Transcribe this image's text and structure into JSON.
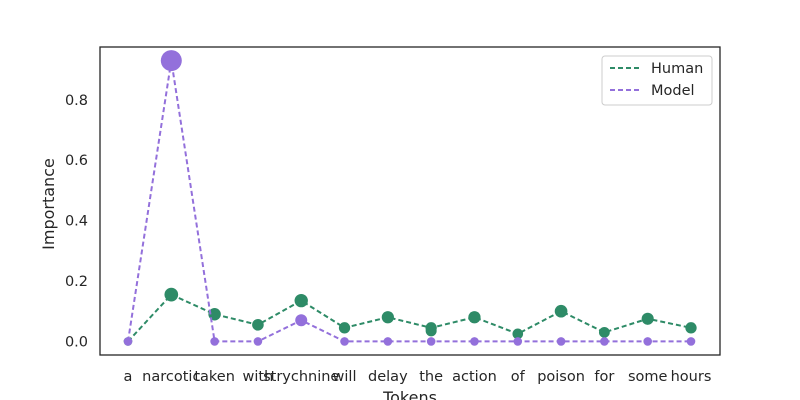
{
  "chart_data": {
    "type": "line",
    "xlabel": "Tokens",
    "ylabel": "Importance",
    "ylim": [
      -0.045,
      0.975
    ],
    "yticks": [
      "0.0",
      "0.2",
      "0.4",
      "0.6",
      "0.8"
    ],
    "grid": false,
    "legend_position": "top-right",
    "categories": [
      "a",
      "narcotic",
      "taken",
      "with",
      "strychnine",
      "will",
      "delay",
      "the",
      "action",
      "of",
      "poison",
      "for",
      "some",
      "hours"
    ],
    "series": [
      {
        "name": "Human",
        "color": "#2e8b67",
        "line_style": "dashed",
        "values": [
          0.0,
          0.155,
          0.09,
          0.055,
          0.135,
          0.045,
          0.08,
          0.045,
          0.08,
          0.025,
          0.1,
          0.03,
          0.075,
          0.045
        ],
        "highlight_values": [
          null,
          null,
          null,
          null,
          null,
          null,
          null,
          0.035,
          null,
          null,
          null,
          null,
          null,
          null
        ]
      },
      {
        "name": "Model",
        "color": "#9370db",
        "line_style": "dashed",
        "values": [
          0.0,
          0.93,
          0.0,
          0.0,
          0.07,
          0.0,
          0.0,
          0.0,
          0.0,
          0.0,
          0.0,
          0.0,
          0.0,
          0.0
        ]
      }
    ]
  }
}
